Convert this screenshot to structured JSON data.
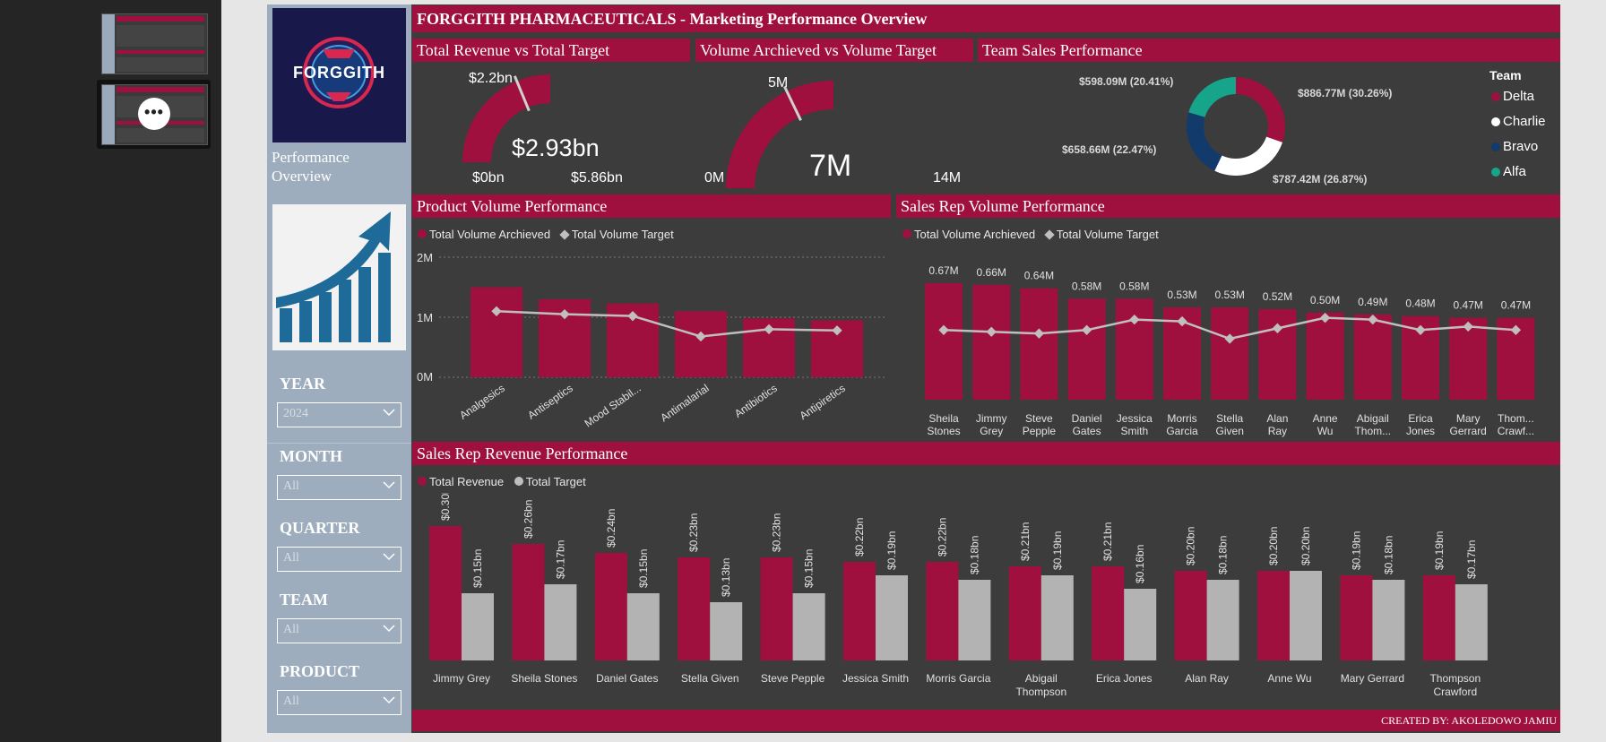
{
  "report": {
    "title": "FORGGITH PHARMACEUTICALS -  Marketing Performance Overview",
    "credit": "CREATED BY: AKOLEDOWO JAMIU",
    "logo_text": "FORGGITH",
    "side_label": "Performance Overview"
  },
  "slicers": [
    {
      "label": "YEAR",
      "value": "2024"
    },
    {
      "label": "MONTH",
      "value": "All"
    },
    {
      "label": "QUARTER",
      "value": "All"
    },
    {
      "label": "TEAM",
      "value": "All"
    },
    {
      "label": "PRODUCT",
      "value": "All"
    }
  ],
  "gauges": {
    "revenue": {
      "title": "Total Revenue vs Total Target",
      "value_label": "$2.93bn",
      "min_label": "$0bn",
      "max_label": "$5.86bn",
      "target_label": "$2.2bn",
      "min": 0,
      "max": 5.86,
      "value": 2.93,
      "target": 2.2
    },
    "volume": {
      "title": "Volume Archieved vs Volume Target",
      "value_label": "7M",
      "min_label": "0M",
      "max_label": "14M",
      "target_label": "5M",
      "min": 0,
      "max": 14,
      "value": 7,
      "target": 5
    }
  },
  "team": {
    "title": "Team Sales Performance",
    "legend_title": "Team",
    "entries": [
      {
        "name": "Delta",
        "label": "$886.77M (30.26%)",
        "value": 886.77,
        "color": "#a0103f"
      },
      {
        "name": "Charlie",
        "label": "$787.42M (26.87%)",
        "value": 787.42,
        "color": "#ffffff"
      },
      {
        "name": "Bravo",
        "label": "$658.66M (22.47%)",
        "value": 658.66,
        "color": "#123a6b"
      },
      {
        "name": "Alfa",
        "label": "$598.09M (20.41%)",
        "value": 598.09,
        "color": "#16a58a"
      }
    ]
  },
  "product": {
    "title": "Product Volume Performance",
    "legend": [
      "Total Volume Archieved",
      "Total Volume Target"
    ],
    "yticks": [
      "2M",
      "1M",
      "0M"
    ]
  },
  "salesrep_volume": {
    "title": "Sales Rep Volume Performance",
    "legend": [
      "Total Volume Archieved",
      "Total Volume Target"
    ]
  },
  "salesrep_revenue": {
    "title": "Sales Rep Revenue Performance",
    "legend": [
      "Total Revenue",
      "Total Target"
    ]
  },
  "colors": {
    "accent": "#a0103f",
    "panel": "#3c3c3c",
    "slicer_bg": "#9eadbe",
    "target_line": "#bfbfbf"
  },
  "chart_data": [
    {
      "type": "bar",
      "title": "Product Volume Performance",
      "categories": [
        "Analgesics",
        "Antiseptics",
        "Mood Stabil...",
        "Antimalarial",
        "Antibiotics",
        "Antipiretics"
      ],
      "series": [
        {
          "name": "Total Volume Archieved",
          "values": [
            1.5,
            1.3,
            1.23,
            1.1,
            0.98,
            0.95
          ]
        },
        {
          "name": "Total Volume Target",
          "values": [
            1.1,
            1.05,
            1.02,
            0.68,
            0.8,
            0.78
          ]
        }
      ],
      "ylim": [
        0,
        2
      ]
    },
    {
      "type": "bar",
      "title": "Sales Rep Volume Performance",
      "categories": [
        "Sheila Stones",
        "Jimmy Grey",
        "Steve Pepple",
        "Daniel Gates",
        "Jessica Smith",
        "Morris Garcia",
        "Stella Given",
        "Alan Ray",
        "Anne Wu",
        "Abigail Thom...",
        "Erica Jones",
        "Mary Gerrard",
        "Thom... Crawf..."
      ],
      "series": [
        {
          "name": "Total Volume Archieved",
          "values": [
            0.67,
            0.66,
            0.64,
            0.58,
            0.58,
            0.53,
            0.53,
            0.52,
            0.5,
            0.49,
            0.48,
            0.47,
            0.47
          ],
          "labels": [
            "0.67M",
            "0.66M",
            "0.64M",
            "0.58M",
            "0.58M",
            "0.53M",
            "0.53M",
            "0.52M",
            "0.50M",
            "0.49M",
            "0.48M",
            "0.47M",
            "0.47M"
          ]
        },
        {
          "name": "Total Volume Target",
          "values": [
            0.4,
            0.39,
            0.38,
            0.4,
            0.46,
            0.45,
            0.35,
            0.41,
            0.47,
            0.46,
            0.4,
            0.42,
            0.4
          ]
        }
      ],
      "ylim": [
        0,
        0.7
      ]
    },
    {
      "type": "bar",
      "title": "Sales Rep Revenue Performance",
      "categories": [
        "Jimmy Grey",
        "Sheila Stones",
        "Daniel Gates",
        "Stella Given",
        "Steve Pepple",
        "Jessica Smith",
        "Morris Garcia",
        "Abigail Thompson",
        "Erica Jones",
        "Alan Ray",
        "Anne Wu",
        "Mary Gerrard",
        "Thompson Crawford"
      ],
      "series": [
        {
          "name": "Total Revenue",
          "values": [
            0.3,
            0.26,
            0.24,
            0.23,
            0.23,
            0.22,
            0.22,
            0.21,
            0.21,
            0.2,
            0.2,
            0.19,
            0.19
          ],
          "labels": [
            "$0.30bn",
            "$0.26bn",
            "$0.24bn",
            "$0.23bn",
            "$0.23bn",
            "$0.22bn",
            "$0.22bn",
            "$0.21bn",
            "$0.21bn",
            "$0.20bn",
            "$0.20bn",
            "$0.19bn",
            "$0.19bn"
          ]
        },
        {
          "name": "Total Target",
          "values": [
            0.15,
            0.17,
            0.15,
            0.13,
            0.15,
            0.19,
            0.18,
            0.19,
            0.16,
            0.18,
            0.2,
            0.18,
            0.17
          ],
          "labels": [
            "$0.15bn",
            "$0.17bn",
            "$0.15bn",
            "$0.13bn",
            "$0.15bn",
            "$0.19bn",
            "$0.18bn",
            "$0.19bn",
            "$0.16bn",
            "$0.18bn",
            "$0.20bn",
            "$0.18bn",
            "$0.17bn"
          ]
        }
      ],
      "ylim": [
        0,
        0.3
      ]
    }
  ]
}
